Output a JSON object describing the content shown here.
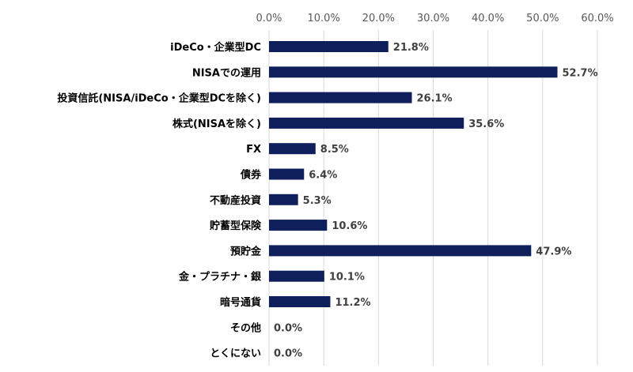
{
  "chart_data": {
    "type": "bar",
    "orientation": "horizontal",
    "categories": [
      "iDeCo・企業型DC",
      "NISAでの運用",
      "投資信託(NISA/iDeCo・企業型DCを除く)",
      "株式(NISAを除く)",
      "FX",
      "債券",
      "不動産投資",
      "貯蓄型保険",
      "預貯金",
      "金・プラチナ・銀",
      "暗号通貨",
      "その他",
      "とくにない"
    ],
    "values": [
      21.8,
      52.7,
      26.1,
      35.6,
      8.5,
      6.4,
      5.3,
      10.6,
      47.9,
      10.1,
      11.2,
      0.0,
      0.0
    ],
    "data_labels": [
      "21.8%",
      "52.7%",
      "26.1%",
      "35.6%",
      "8.5%",
      "6.4%",
      "5.3%",
      "10.6%",
      "47.9%",
      "10.1%",
      "11.2%",
      "0.0%",
      "0.0%"
    ],
    "xlim": [
      0,
      60
    ],
    "x_ticks": [
      "0.0%",
      "10.0%",
      "20.0%",
      "30.0%",
      "40.0%",
      "50.0%",
      "60.0%"
    ],
    "x_axis_position": "top",
    "grid": true,
    "bar_color": "#0f1f5c",
    "title": "",
    "xlabel": "",
    "ylabel": ""
  }
}
